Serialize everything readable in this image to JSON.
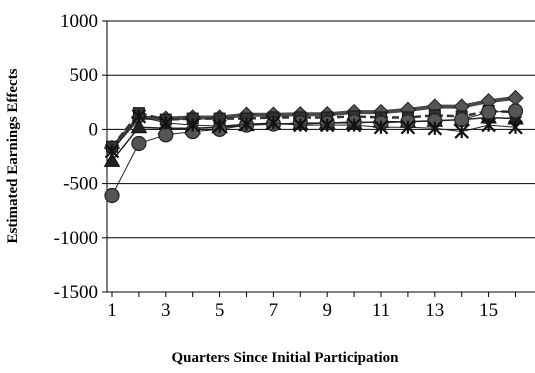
{
  "chart_data": {
    "type": "line",
    "title": "",
    "xlabel": "Quarters Since Initial Participation",
    "ylabel": "Estimated Earnings Effects",
    "ylim": [
      -1500,
      1000
    ],
    "yticks": [
      1000,
      500,
      0,
      -500,
      -1000,
      -1500
    ],
    "xlim": [
      1,
      16
    ],
    "xticks": [
      1,
      3,
      5,
      7,
      9,
      11,
      13,
      15
    ],
    "grid": "horizontal",
    "legend": "none",
    "x": [
      1,
      2,
      3,
      4,
      5,
      6,
      7,
      8,
      9,
      10,
      11,
      12,
      13,
      14,
      15,
      16
    ],
    "series": [
      {
        "marker": "diamond",
        "color": "#4a4a4a",
        "line_width": 4,
        "values": [
          -170,
          110,
          100,
          110,
          110,
          135,
          135,
          140,
          140,
          160,
          160,
          180,
          210,
          210,
          260,
          290
        ]
      },
      {
        "marker": "square",
        "color": "#333333",
        "line_width": 2.5,
        "dashed": true,
        "values": [
          -160,
          150,
          90,
          100,
          100,
          100,
          110,
          110,
          110,
          120,
          110,
          110,
          130,
          120,
          170,
          160
        ]
      },
      {
        "marker": "triangle",
        "color": "#222222",
        "line_width": 1.5,
        "values": [
          -290,
          20,
          10,
          10,
          20,
          40,
          50,
          50,
          60,
          60,
          70,
          70,
          80,
          90,
          110,
          100
        ]
      },
      {
        "marker": "circle",
        "color": "#222222",
        "line_width": 1,
        "values": [
          -610,
          -130,
          -50,
          -20,
          0,
          40,
          50,
          60,
          60,
          70,
          60,
          70,
          80,
          90,
          160,
          170
        ]
      },
      {
        "marker": "star",
        "color": "#222222",
        "line_width": 1,
        "values": [
          -200,
          120,
          60,
          40,
          30,
          50,
          60,
          40,
          40,
          40,
          20,
          20,
          10,
          -20,
          40,
          20
        ]
      }
    ]
  }
}
